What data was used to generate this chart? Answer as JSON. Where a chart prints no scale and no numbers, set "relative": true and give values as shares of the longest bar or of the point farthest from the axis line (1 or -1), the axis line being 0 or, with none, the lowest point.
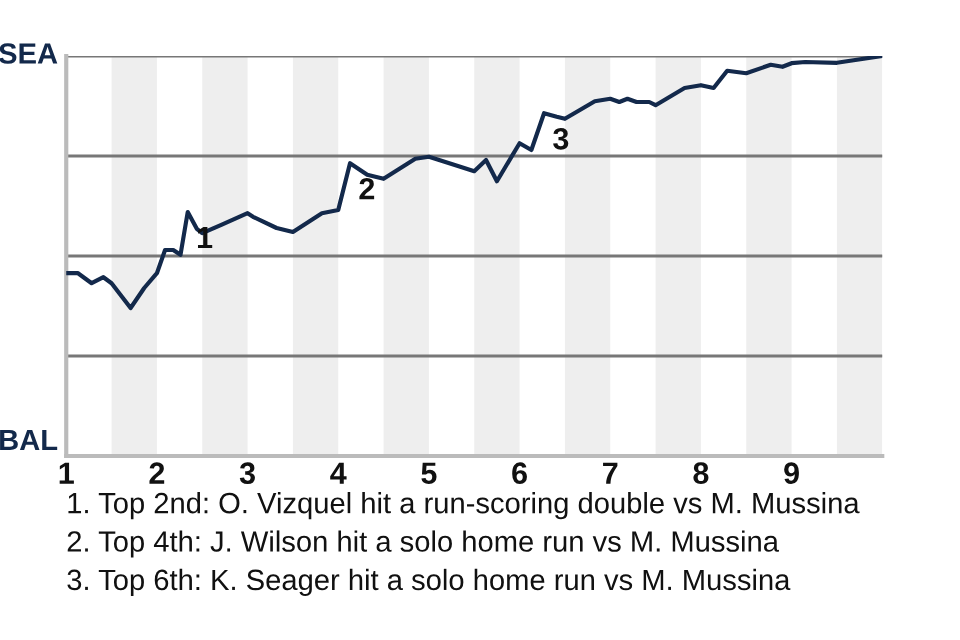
{
  "chart_data": {
    "type": "line",
    "relative": true,
    "x": [
      1.0,
      1.13,
      1.28,
      1.41,
      1.5,
      1.71,
      1.86,
      2,
      2.09,
      2.18,
      2.26,
      2.34,
      2.44,
      2.5,
      2.71,
      3,
      3.06,
      3.32,
      3.5,
      3.82,
      4,
      4.13,
      4.32,
      4.5,
      4.85,
      5,
      5.32,
      5.5,
      5.63,
      5.75,
      6,
      6.13,
      6.27,
      6.41,
      6.5,
      6.83,
      7,
      7.1,
      7.19,
      7.29,
      7.43,
      7.5,
      7.82,
      8,
      8.14,
      8.29,
      8.5,
      8.77,
      8.9,
      9,
      9.15,
      9.5,
      10
    ],
    "series": [
      {
        "color": "#13294b",
        "values": [
          0.457,
          0.457,
          0.432,
          0.447,
          0.432,
          0.37,
          0.42,
          0.457,
          0.515,
          0.515,
          0.503,
          0.61,
          0.568,
          0.557,
          0.578,
          0.607,
          0.598,
          0.57,
          0.56,
          0.607,
          0.615,
          0.732,
          0.703,
          0.693,
          0.743,
          0.748,
          0.725,
          0.712,
          0.74,
          0.687,
          0.782,
          0.765,
          0.857,
          0.848,
          0.843,
          0.887,
          0.893,
          0.885,
          0.893,
          0.885,
          0.885,
          0.877,
          0.92,
          0.927,
          0.92,
          0.963,
          0.957,
          0.978,
          0.973,
          0.982,
          0.985,
          0.983,
          1
        ]
      }
    ],
    "xlim": [
      1,
      10
    ],
    "xticks": [
      1,
      2,
      3,
      4,
      5,
      6,
      7,
      8,
      9
    ],
    "ref_lines": [
      {
        "axis": "y",
        "value": 0.25,
        "color": "#777777"
      },
      {
        "axis": "y",
        "value": 0.5,
        "color": "#777777"
      },
      {
        "axis": "y",
        "value": 0.75,
        "color": "#777777"
      },
      {
        "axis": "y",
        "value": 1,
        "color": "#777777"
      }
    ],
    "bands": [
      {
        "axis": "x",
        "from": 1.5,
        "to": 2,
        "color": "#eeeeee"
      },
      {
        "axis": "x",
        "from": 2.5,
        "to": 3,
        "color": "#eeeeee"
      },
      {
        "axis": "x",
        "from": 3.5,
        "to": 4,
        "color": "#eeeeee"
      },
      {
        "axis": "x",
        "from": 4.5,
        "to": 5,
        "color": "#eeeeee"
      },
      {
        "axis": "x",
        "from": 5.5,
        "to": 6,
        "color": "#eeeeee"
      },
      {
        "axis": "x",
        "from": 6.5,
        "to": 7,
        "color": "#eeeeee"
      },
      {
        "axis": "x",
        "from": 7.5,
        "to": 8,
        "color": "#eeeeee"
      },
      {
        "axis": "x",
        "from": 8.5,
        "to": 9,
        "color": "#eeeeee"
      },
      {
        "axis": "x",
        "from": 9.5,
        "to": 10,
        "color": "#eeeeee"
      }
    ],
    "annotations": [
      "SEA",
      "BAL",
      {
        "text": "1",
        "x": 2.34,
        "y": 0.61
      },
      {
        "text": "2",
        "x": 4.13,
        "y": 0.732
      },
      {
        "text": "3",
        "x": 6.27,
        "y": 0.857
      },
      "1. Top 2nd: O. Vizquel hit a run-scoring double vs M. Mussina",
      "2. Top 4th: J. Wilson hit a solo home run vs M. Mussina",
      "3. Top 6th: K. Seager hit a solo home run vs M. Mussina"
    ]
  }
}
